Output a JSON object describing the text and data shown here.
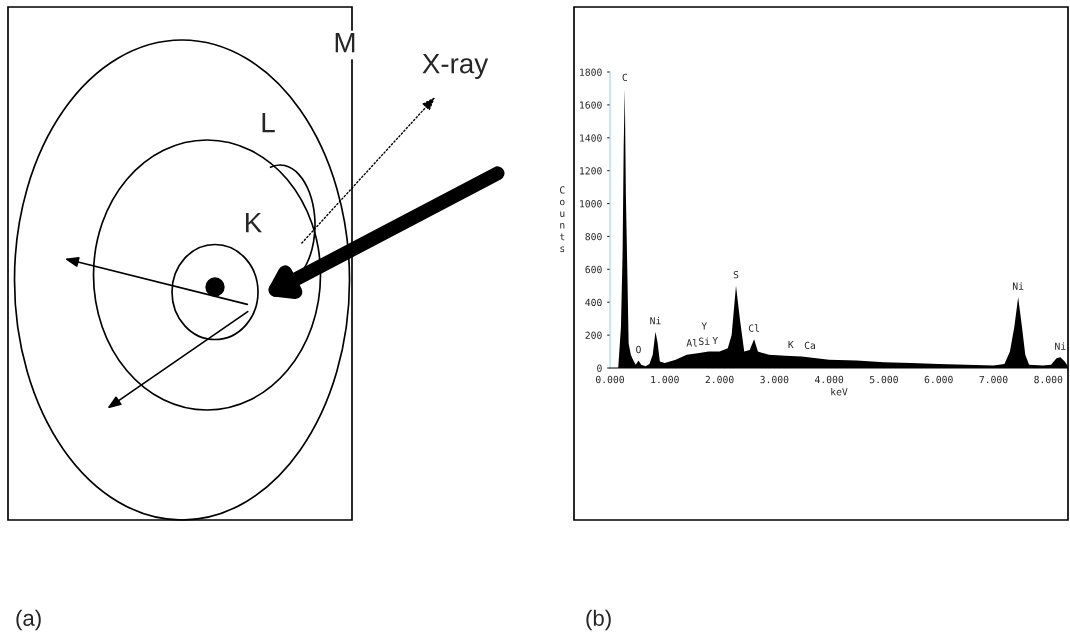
{
  "chart_data": [
    {
      "type": "other",
      "annotations": [
        "M",
        "L",
        "K",
        "X-ray",
        "(a)"
      ]
    },
    {
      "type": "area",
      "xlabel": "keV",
      "ylabel": "Counts",
      "color": "#000000",
      "x": [
        0.15,
        0.17,
        0.2,
        0.23,
        0.25,
        0.27,
        0.29,
        0.31,
        0.34,
        0.38,
        0.42,
        0.47,
        0.52,
        0.57,
        0.65,
        0.72,
        0.78,
        0.83,
        0.87,
        0.91,
        1.0,
        1.2,
        1.4,
        1.6,
        1.8,
        2.0,
        2.15,
        2.22,
        2.3,
        2.37,
        2.45,
        2.55,
        2.63,
        2.7,
        2.9,
        3.2,
        3.5,
        4.0,
        4.5,
        5.0,
        5.5,
        6.0,
        6.5,
        7.0,
        7.2,
        7.3,
        7.38,
        7.45,
        7.52,
        7.58,
        7.65,
        7.9,
        8.05,
        8.15,
        8.22,
        8.3,
        8.36
      ],
      "values": [
        0,
        100,
        250,
        700,
        1350,
        1700,
        1050,
        700,
        150,
        80,
        50,
        20,
        45,
        20,
        10,
        25,
        80,
        220,
        150,
        40,
        30,
        50,
        80,
        90,
        100,
        100,
        120,
        200,
        500,
        300,
        100,
        110,
        175,
        100,
        80,
        75,
        70,
        50,
        45,
        35,
        30,
        25,
        20,
        15,
        25,
        100,
        250,
        430,
        250,
        80,
        20,
        15,
        20,
        60,
        65,
        40,
        10
      ],
      "xlim": [
        0,
        8.36
      ],
      "ylim": [
        0,
        1800
      ],
      "xticks": [
        {
          "value": 0,
          "label": "0.000"
        },
        {
          "value": 1,
          "label": "1.000"
        },
        {
          "value": 2,
          "label": "2.000"
        },
        {
          "value": 3,
          "label": "3.000"
        },
        {
          "value": 4,
          "label": "4.000"
        },
        {
          "value": 5,
          "label": "5.000"
        },
        {
          "value": 6,
          "label": "6.000"
        },
        {
          "value": 7,
          "label": "7.000"
        },
        {
          "value": 8,
          "label": "8.000"
        }
      ],
      "yticks": [
        0,
        200,
        400,
        600,
        800,
        1000,
        1200,
        1400,
        1600,
        1800
      ],
      "annotations": [
        {
          "text": "C",
          "x": 0.27,
          "y": 1700
        },
        {
          "text": "O",
          "x": 0.52,
          "y": 45
        },
        {
          "text": "Ni",
          "x": 0.83,
          "y": 220
        },
        {
          "text": "Al",
          "x": 1.5,
          "y": 85
        },
        {
          "text": "Si",
          "x": 1.72,
          "y": 95
        },
        {
          "text": "Y",
          "x": 1.72,
          "y": 95
        },
        {
          "text": "Y",
          "x": 1.92,
          "y": 100
        },
        {
          "text": "S",
          "x": 2.3,
          "y": 500
        },
        {
          "text": "Cl",
          "x": 2.63,
          "y": 175
        },
        {
          "text": "K",
          "x": 3.3,
          "y": 75
        },
        {
          "text": "Ca",
          "x": 3.65,
          "y": 70
        },
        {
          "text": "Ni",
          "x": 7.45,
          "y": 430
        },
        {
          "text": "Ni",
          "x": 8.22,
          "y": 65
        },
        "(b)"
      ]
    }
  ]
}
